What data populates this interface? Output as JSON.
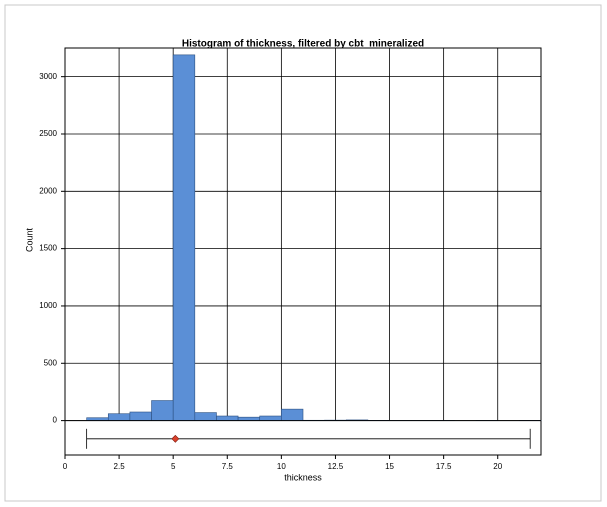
{
  "chart_data": {
    "type": "histogram",
    "title": "Histogram of thickness, filtered by cbt_mineralized",
    "xlabel": "thickness",
    "ylabel": "Count",
    "bins": [
      1,
      2,
      3,
      4,
      5,
      6,
      7,
      8,
      9,
      10,
      11,
      12,
      13,
      14,
      15,
      16,
      17,
      18,
      19,
      20,
      21,
      22
    ],
    "counts": [
      25,
      60,
      75,
      175,
      3190,
      70,
      40,
      30,
      40,
      100,
      3,
      4,
      6,
      2,
      1,
      1,
      1,
      0,
      1,
      0,
      1
    ],
    "color": "#5b8fd6",
    "xlim": [
      0,
      22
    ],
    "xticks": [
      0,
      2.5,
      5,
      7.5,
      10,
      12.5,
      15,
      17.5,
      20
    ],
    "ylim": [
      -300,
      3250
    ],
    "yticks": [
      0,
      500,
      1000,
      1500,
      2000,
      2500,
      3000
    ],
    "grid": true,
    "boxplot": {
      "min": 1,
      "max": 21.5,
      "mean": 5.1,
      "mean_color": "#d9402b"
    }
  }
}
